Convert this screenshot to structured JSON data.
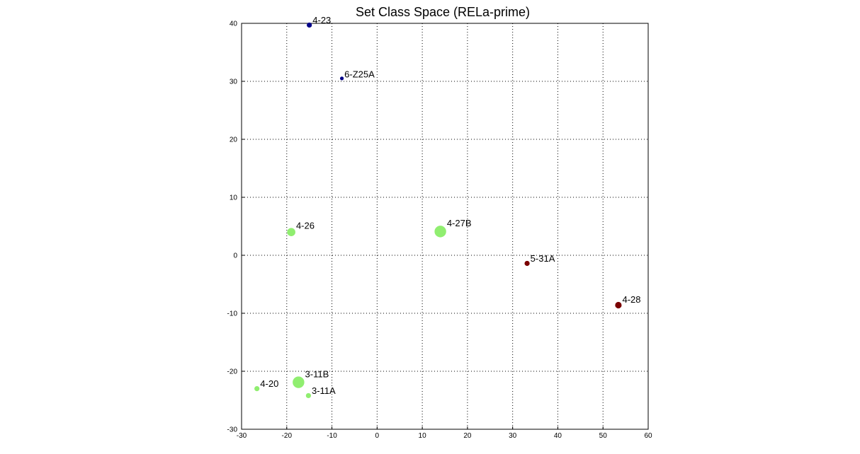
{
  "chart_data": {
    "type": "scatter",
    "title": "Set Class Space (RELa-prime)",
    "xlabel": "",
    "ylabel": "",
    "xlim": [
      -30,
      60
    ],
    "ylim": [
      -30,
      40
    ],
    "xticks": [
      "-30",
      "-20",
      "-10",
      "0",
      "10",
      "20",
      "30",
      "40",
      "50",
      "60"
    ],
    "yticks": [
      "40",
      "30",
      "20",
      "10",
      "0",
      "-10",
      "-20",
      "-30"
    ],
    "grid": true,
    "points": [
      {
        "label": "4-23",
        "x": -15.0,
        "y": 39.7,
        "color": "#000088",
        "size": "small"
      },
      {
        "label": "6-Z25A",
        "x": -7.8,
        "y": 30.5,
        "color": "#000088",
        "size": "tiny"
      },
      {
        "label": "4-26",
        "x": -19.0,
        "y": 4.0,
        "color": "#90ee70",
        "size": "medium"
      },
      {
        "label": "4-27B",
        "x": 14.0,
        "y": 4.1,
        "color": "#90ee70",
        "size": "large"
      },
      {
        "label": "5-31A",
        "x": 33.2,
        "y": -1.4,
        "color": "#7a0000",
        "size": "small"
      },
      {
        "label": "4-28",
        "x": 53.4,
        "y": -8.6,
        "color": "#7a0000",
        "size": "medium-small"
      },
      {
        "label": "4-20",
        "x": -26.6,
        "y": -23.0,
        "color": "#90ee70",
        "size": "small"
      },
      {
        "label": "3-11B",
        "x": -17.4,
        "y": -21.9,
        "color": "#90ee70",
        "size": "large"
      },
      {
        "label": "3-11A",
        "x": -15.2,
        "y": -24.2,
        "color": "#90ee70",
        "size": "small"
      }
    ]
  }
}
